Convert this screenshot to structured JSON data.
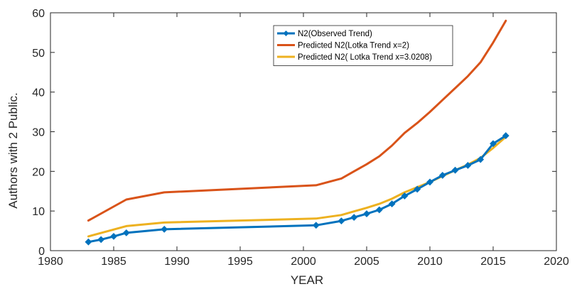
{
  "chart_data": {
    "type": "line",
    "title": "",
    "xlabel": "YEAR",
    "ylabel": "Authors with 2 Public.",
    "xlim": [
      1980,
      2020
    ],
    "ylim": [
      0,
      60
    ],
    "xticks": [
      1980,
      1985,
      1990,
      1995,
      2000,
      2005,
      2010,
      2015,
      2020
    ],
    "yticks": [
      0,
      10,
      20,
      30,
      40,
      50,
      60
    ],
    "grid": false,
    "legend": "top-center",
    "series": [
      {
        "name": "N2(Observed Trend)",
        "color": "#0072BD",
        "marker": "diamond",
        "x": [
          1983,
          1984,
          1985,
          1986,
          1989,
          2001,
          2003,
          2004,
          2005,
          2006,
          2007,
          2008,
          2009,
          2010,
          2011,
          2012,
          2013,
          2014,
          2015,
          2016
        ],
        "y": [
          2.2,
          2.8,
          3.6,
          4.5,
          5.4,
          6.4,
          7.5,
          8.4,
          9.3,
          10.3,
          11.8,
          13.8,
          15.5,
          17.3,
          19.0,
          20.3,
          21.5,
          23.0,
          27.0,
          29.0
        ]
      },
      {
        "name": "Predicted N2(Lotka Trend x=2)",
        "color": "#D95319",
        "marker": "none",
        "x": [
          1983,
          1986,
          1989,
          2001,
          2003,
          2004,
          2005,
          2006,
          2007,
          2008,
          2009,
          2010,
          2011,
          2012,
          2013,
          2014,
          2015,
          2016
        ],
        "y": [
          7.6,
          12.9,
          14.7,
          16.5,
          18.2,
          20.0,
          21.8,
          23.8,
          26.5,
          29.7,
          32.2,
          35.0,
          38.0,
          41.0,
          44.0,
          47.5,
          52.5,
          58.0
        ]
      },
      {
        "name": "Predicted N2( Lotka Trend   x=3.0208)",
        "color": "#EDB120",
        "marker": "none",
        "x": [
          1983,
          1986,
          1989,
          2001,
          2003,
          2004,
          2005,
          2006,
          2007,
          2008,
          2009,
          2010,
          2011,
          2012,
          2013,
          2014,
          2015,
          2016
        ],
        "y": [
          3.6,
          6.2,
          7.1,
          8.1,
          9.0,
          9.9,
          10.8,
          11.8,
          13.1,
          14.7,
          16.0,
          17.3,
          18.8,
          20.3,
          21.7,
          23.4,
          25.9,
          28.7
        ]
      }
    ]
  }
}
